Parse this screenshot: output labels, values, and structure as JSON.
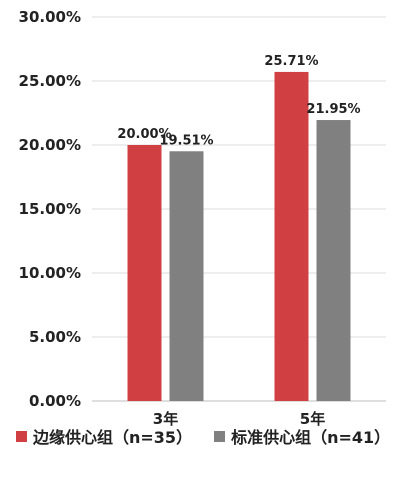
{
  "chart_data": {
    "type": "bar",
    "categories": [
      "3年",
      "5年"
    ],
    "series": [
      {
        "name": "边缘供心组（n=35）",
        "values": [
          20.0,
          25.71
        ],
        "labels": [
          "20.00%",
          "25.71%"
        ],
        "color": "#d04043"
      },
      {
        "name": "标准供心组（n=41）",
        "values": [
          19.51,
          21.95
        ],
        "labels": [
          "19.51%",
          "21.95%"
        ],
        "color": "#808080"
      }
    ],
    "y_ticks": [
      "0.00%",
      "5.00%",
      "10.00%",
      "15.00%",
      "20.00%",
      "25.00%",
      "30.00%"
    ],
    "ylim": [
      0,
      30
    ],
    "grid": true,
    "legend_position": "bottom",
    "title": "",
    "xlabel": "",
    "ylabel": ""
  }
}
